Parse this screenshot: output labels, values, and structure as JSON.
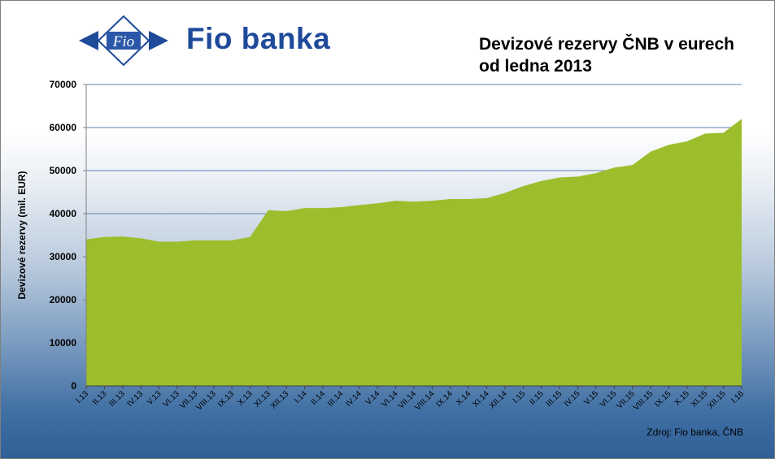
{
  "brand": {
    "logo_text": "Fio",
    "name": "Fio banka",
    "colors": {
      "primary": "#1f4a9a",
      "logo_bg": "#2b57a8"
    }
  },
  "header": {
    "title_line1": "Devizové rezervy ČNB v eurech",
    "title_line2": "od ledna 2013"
  },
  "source_note": "Zdroj:  Fio banka, ČNB",
  "chart_data": {
    "type": "area",
    "title": "Devizové rezervy ČNB v eurech od ledna 2013",
    "xlabel": "",
    "ylabel": "Devizové rezervy (mil. EUR)",
    "ylim": [
      0,
      70000
    ],
    "yticks": [
      0,
      10000,
      20000,
      30000,
      40000,
      50000,
      60000,
      70000
    ],
    "grid": true,
    "color": "#9cbe2d",
    "categories": [
      "I.13",
      "II.13",
      "III.13",
      "IV.13",
      "V.13",
      "VI.13",
      "VII.13",
      "VIII.13",
      "IX.13",
      "X.13",
      "XI.13",
      "XII.13",
      "I.14",
      "II.14",
      "III.14",
      "IV.14",
      "V.14",
      "VI.14",
      "VII.14",
      "VIII.14",
      "IX.14",
      "X.14",
      "XI.14",
      "XII.14",
      "I.15",
      "II.15",
      "III.15",
      "IV.15",
      "V.15",
      "VI.15",
      "VII.15",
      "VIII.15",
      "IX.15",
      "X.15",
      "XI.15",
      "XII.15",
      "I.16"
    ],
    "values": [
      34000,
      34600,
      34700,
      34300,
      33500,
      33500,
      33800,
      33800,
      33800,
      34600,
      40800,
      40600,
      41300,
      41300,
      41500,
      42000,
      42400,
      43000,
      42800,
      43000,
      43400,
      43400,
      43600,
      44800,
      46400,
      47600,
      48400,
      48600,
      49400,
      50700,
      51300,
      54400,
      56000,
      56800,
      58600,
      58800,
      62000
    ]
  }
}
